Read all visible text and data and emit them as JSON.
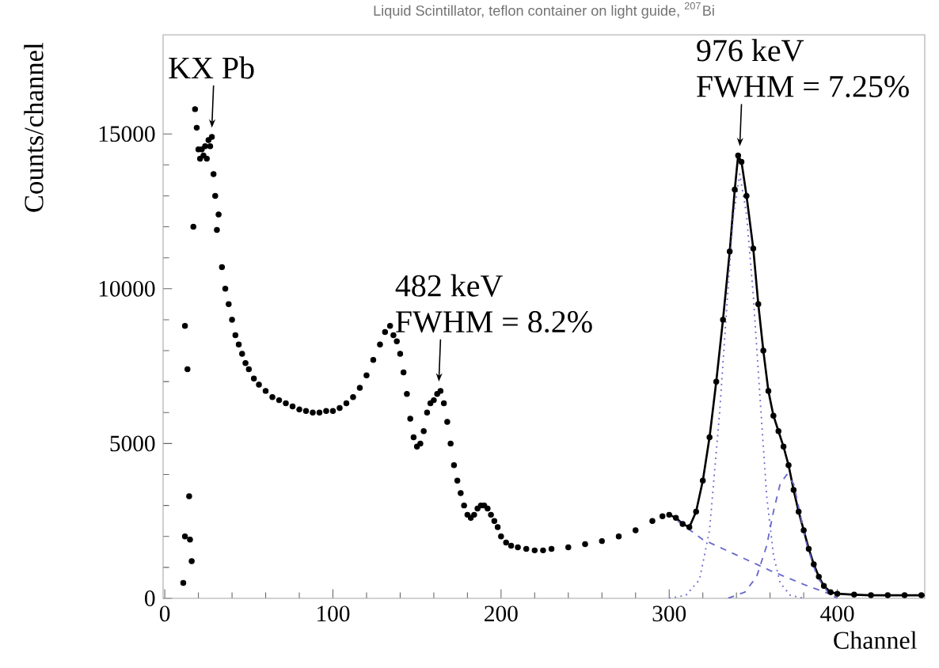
{
  "chart_data": {
    "type": "scatter",
    "title": "Liquid Scintillator, teflon container on light guide, $^{207}$Bi",
    "xlabel": "Channel",
    "ylabel": "Counts/channel",
    "xlim": [
      -1,
      452
    ],
    "ylim": [
      0,
      18200
    ],
    "xticks": [
      0,
      100,
      200,
      300,
      400
    ],
    "yticks": [
      0,
      5000,
      10000,
      15000
    ],
    "grid": false,
    "series": [
      {
        "type": "scatter",
        "marker": "circle",
        "color": "#000000",
        "x": [
          11,
          12,
          12,
          13.5,
          14.5,
          15,
          16,
          17,
          18,
          19,
          20,
          21,
          22,
          23,
          24,
          25,
          26,
          27,
          28,
          29,
          30,
          31,
          32,
          34,
          36,
          38,
          40,
          42,
          44,
          46,
          48,
          50,
          53,
          56,
          60,
          64,
          68,
          72,
          76,
          80,
          84,
          88,
          92,
          96,
          100,
          104,
          108,
          112,
          116,
          120,
          124,
          128,
          131,
          134,
          136,
          138,
          140,
          142,
          144,
          146,
          148,
          150,
          152,
          154,
          156,
          158,
          160,
          162,
          164,
          166,
          168,
          170,
          172,
          174,
          176,
          178,
          180,
          182,
          184,
          186,
          188,
          190,
          192,
          194,
          196,
          198,
          200,
          203,
          206,
          210,
          215,
          220,
          225,
          230,
          240,
          250,
          260,
          270,
          280,
          290,
          296,
          300,
          304,
          308,
          312,
          316,
          320,
          324,
          328,
          332,
          336,
          339,
          341,
          343,
          346,
          350,
          353,
          356,
          359,
          362,
          365,
          368,
          371,
          374,
          377,
          380,
          383,
          386,
          389,
          392,
          396,
          400,
          410,
          420,
          430,
          440,
          450
        ],
        "values": [
          500,
          2000,
          8800,
          7400,
          3300,
          1900,
          1200,
          12000,
          15800,
          15200,
          14500,
          14200,
          14500,
          14300,
          14600,
          14200,
          14800,
          14600,
          14900,
          13700,
          13000,
          11900,
          12400,
          10700,
          10000,
          9500,
          9000,
          8500,
          8200,
          7900,
          7600,
          7400,
          7100,
          6900,
          6700,
          6500,
          6400,
          6300,
          6200,
          6100,
          6050,
          6000,
          6000,
          6050,
          6050,
          6150,
          6300,
          6500,
          6800,
          7200,
          7700,
          8200,
          8600,
          8800,
          8500,
          8300,
          7900,
          7300,
          6600,
          5800,
          5200,
          4900,
          5000,
          5400,
          6000,
          6300,
          6400,
          6600,
          6700,
          6300,
          5700,
          5000,
          4300,
          3800,
          3400,
          3000,
          2700,
          2600,
          2700,
          2900,
          3000,
          3000,
          2900,
          2700,
          2500,
          2300,
          2000,
          1800,
          1700,
          1650,
          1600,
          1550,
          1550,
          1600,
          1650,
          1750,
          1850,
          2000,
          2200,
          2500,
          2650,
          2700,
          2600,
          2400,
          2300,
          2800,
          3800,
          5200,
          7000,
          9000,
          11200,
          13200,
          14300,
          14100,
          13000,
          11300,
          9500,
          8000,
          6700,
          5900,
          5400,
          4900,
          4300,
          3500,
          2800,
          2200,
          1600,
          1100,
          700,
          400,
          200,
          150,
          120,
          100,
          100,
          100,
          100
        ]
      },
      {
        "type": "line",
        "marker": "none",
        "line_style": "solid",
        "color": "#000000",
        "x": [
          300,
          304,
          308,
          312,
          316,
          320,
          324,
          328,
          332,
          336,
          339,
          341,
          343,
          346,
          350,
          353,
          356,
          359,
          362,
          365,
          368,
          371,
          374,
          377,
          380,
          383,
          386,
          389,
          392,
          396,
          400,
          410,
          420,
          430,
          440,
          452
        ],
        "values": [
          2700,
          2600,
          2400,
          2300,
          2800,
          3800,
          5200,
          7000,
          9000,
          11200,
          13200,
          14300,
          14100,
          13000,
          11300,
          9500,
          8000,
          6700,
          5900,
          5400,
          4900,
          4300,
          3500,
          2800,
          2200,
          1600,
          1100,
          700,
          400,
          200,
          150,
          120,
          100,
          100,
          100,
          100
        ]
      },
      {
        "type": "line",
        "marker": "none",
        "line_style": "dotted",
        "color": "#6a6acd",
        "x": [
          300,
          310,
          318,
          324,
          330,
          335,
          338,
          342,
          346,
          350,
          354,
          358,
          362,
          366,
          372,
          380
        ],
        "values": [
          0,
          100,
          600,
          2200,
          6000,
          10000,
          12300,
          13700,
          12400,
          9800,
          6500,
          3300,
          1400,
          500,
          100,
          0
        ]
      },
      {
        "type": "line",
        "marker": "none",
        "line_style": "dashed",
        "color": "#6a6acd",
        "x": [
          335,
          345,
          352,
          358,
          362,
          366,
          370,
          374,
          378,
          382,
          388,
          395,
          400
        ],
        "values": [
          0,
          200,
          700,
          1700,
          2800,
          3700,
          4000,
          3700,
          2700,
          1700,
          700,
          150,
          0
        ]
      },
      {
        "type": "line",
        "marker": "none",
        "line_style": "dashed",
        "color": "#6a6acd",
        "x": [
          305,
          320,
          340,
          360,
          380,
          400
        ],
        "values": [
          2500,
          1900,
          1400,
          900,
          450,
          50
        ]
      }
    ],
    "annotations": [
      {
        "text": "KX Pb",
        "x": 28,
        "y": 15200
      },
      {
        "text": "482 keV",
        "x": 163,
        "y": 7000
      },
      {
        "text": "FWHM = 8.2%",
        "x": 163,
        "y": 7000
      },
      {
        "text": "976 keV",
        "x": 342,
        "y": 14600
      },
      {
        "text": "FWHM = 7.25%",
        "x": 342,
        "y": 14600
      }
    ]
  }
}
